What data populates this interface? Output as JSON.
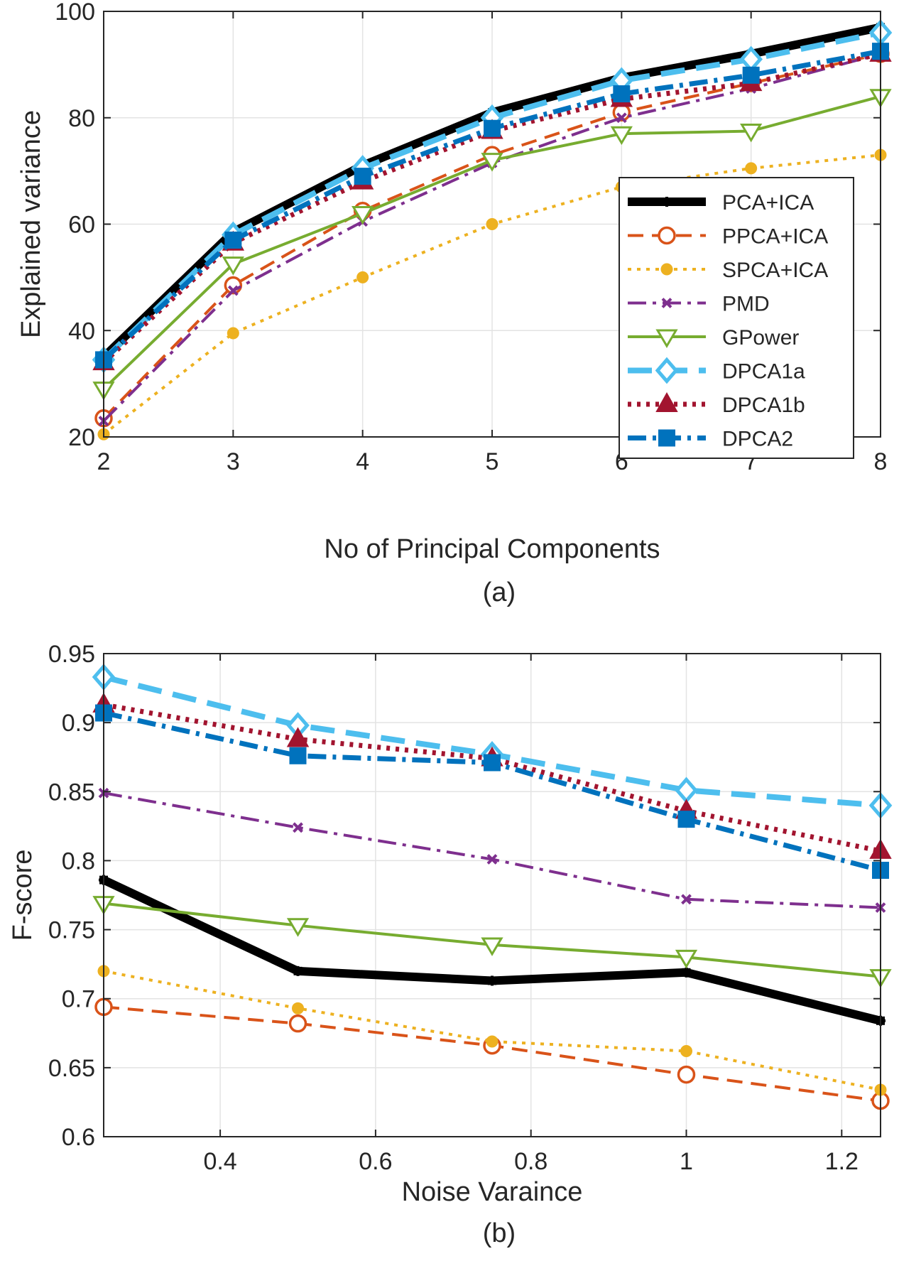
{
  "chart_data": [
    {
      "type": "line",
      "panel": "a",
      "caption": "(a)",
      "xlabel": "No of Principal Components",
      "ylabel": "Explained variance",
      "xlim": [
        2,
        8
      ],
      "ylim": [
        20,
        100
      ],
      "xticks": [
        2,
        3,
        4,
        5,
        6,
        7,
        8
      ],
      "yticks": [
        20,
        40,
        60,
        80,
        100
      ],
      "grid": true,
      "legend": "inside-right",
      "x": [
        2,
        3,
        4,
        5,
        6,
        7,
        8
      ],
      "series": [
        {
          "name": "PCA+ICA",
          "color": "#000000",
          "marker": "plus",
          "style": "solid",
          "values": [
            35,
            58.5,
            71,
            81,
            87.5,
            92,
            97
          ]
        },
        {
          "name": "PPCA+ICA",
          "color": "#D95319",
          "marker": "circle",
          "style": "dash",
          "values": [
            23.5,
            48.5,
            62.5,
            73,
            81,
            86.5,
            92
          ]
        },
        {
          "name": "SPCA+ICA",
          "color": "#EDB120",
          "marker": "dot",
          "style": "dot",
          "values": [
            20.5,
            39.5,
            50,
            60,
            67,
            70.5,
            73
          ]
        },
        {
          "name": "PMD",
          "color": "#7E2F8E",
          "marker": "x",
          "style": "dashdot",
          "values": [
            23,
            47.5,
            60.5,
            71.5,
            80,
            85.5,
            92
          ]
        },
        {
          "name": "GPower",
          "color": "#77AC30",
          "marker": "triangle-down",
          "style": "solid",
          "values": [
            29,
            52.5,
            62,
            72,
            77,
            77.5,
            84
          ]
        },
        {
          "name": "DPCA1a",
          "color": "#4DBEEE",
          "marker": "diamond",
          "style": "longdash",
          "values": [
            34.5,
            58,
            70.5,
            80,
            87,
            91,
            96
          ]
        },
        {
          "name": "DPCA1b",
          "color": "#A2142F",
          "marker": "triangle-up",
          "style": "dot",
          "values": [
            34,
            56.5,
            68,
            77.5,
            83.5,
            86.5,
            92
          ]
        },
        {
          "name": "DPCA2",
          "color": "#0072BD",
          "marker": "square",
          "style": "dashdot",
          "values": [
            34.5,
            57,
            69,
            78,
            84.5,
            88,
            92.5
          ]
        }
      ]
    },
    {
      "type": "line",
      "panel": "b",
      "caption": "(b)",
      "xlabel": "Noise Varaince",
      "ylabel": "F-score",
      "xlim": [
        0.25,
        1.25
      ],
      "ylim": [
        0.6,
        0.95
      ],
      "xticks": [
        0.4,
        0.6,
        0.8,
        1,
        1.2
      ],
      "yticks": [
        0.6,
        0.65,
        0.7,
        0.75,
        0.8,
        0.85,
        0.9,
        0.95
      ],
      "grid": true,
      "x": [
        0.25,
        0.5,
        0.75,
        1,
        1.25
      ],
      "series": [
        {
          "name": "PCA+ICA",
          "color": "#000000",
          "marker": "plus",
          "style": "solid",
          "values": [
            0.786,
            0.72,
            0.713,
            0.719,
            0.684
          ]
        },
        {
          "name": "PPCA+ICA",
          "color": "#D95319",
          "marker": "circle",
          "style": "dash",
          "values": [
            0.694,
            0.682,
            0.666,
            0.645,
            0.626
          ]
        },
        {
          "name": "SPCA+ICA",
          "color": "#EDB120",
          "marker": "dot",
          "style": "dot",
          "values": [
            0.72,
            0.693,
            0.669,
            0.662,
            0.634
          ]
        },
        {
          "name": "PMD",
          "color": "#7E2F8E",
          "marker": "x",
          "style": "dashdot",
          "values": [
            0.849,
            0.824,
            0.801,
            0.772,
            0.766
          ]
        },
        {
          "name": "GPower",
          "color": "#77AC30",
          "marker": "triangle-down",
          "style": "solid",
          "values": [
            0.769,
            0.753,
            0.739,
            0.73,
            0.716
          ]
        },
        {
          "name": "DPCA1a",
          "color": "#4DBEEE",
          "marker": "diamond",
          "style": "longdash",
          "values": [
            0.933,
            0.898,
            0.877,
            0.851,
            0.84
          ]
        },
        {
          "name": "DPCA1b",
          "color": "#A2142F",
          "marker": "triangle-up",
          "style": "dot",
          "values": [
            0.913,
            0.888,
            0.874,
            0.836,
            0.807
          ]
        },
        {
          "name": "DPCA2",
          "color": "#0072BD",
          "marker": "square",
          "style": "dashdot",
          "values": [
            0.907,
            0.876,
            0.871,
            0.83,
            0.793
          ]
        }
      ]
    }
  ]
}
